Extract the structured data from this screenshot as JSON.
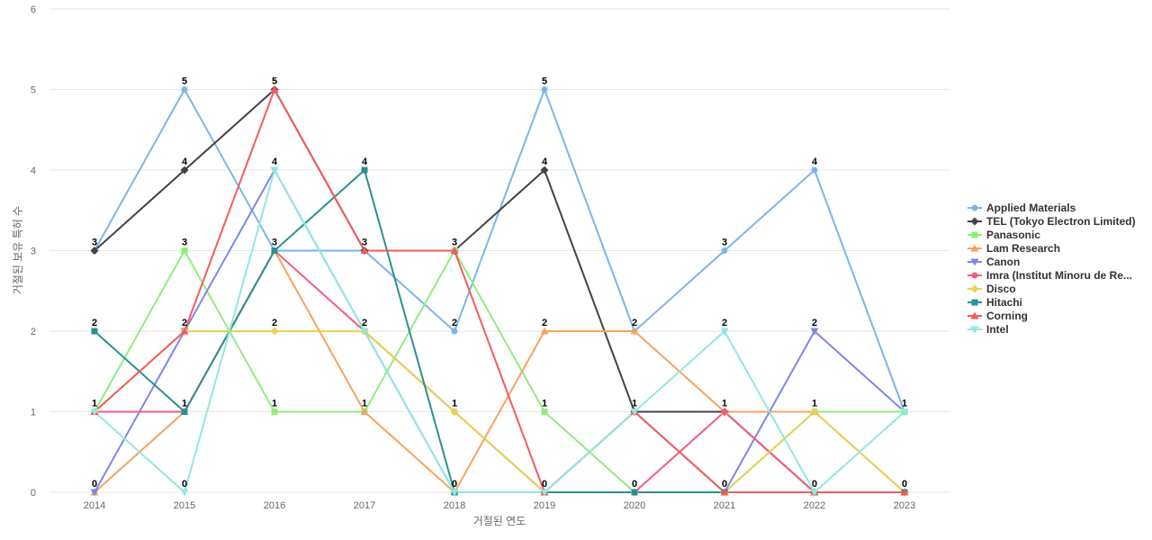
{
  "chart_data": {
    "type": "line",
    "title": "",
    "xlabel": "거절된 연도",
    "ylabel": "거절된 보유 특허 수",
    "categories": [
      "2014",
      "2015",
      "2016",
      "2017",
      "2018",
      "2019",
      "2020",
      "2021",
      "2022",
      "2023"
    ],
    "ylim": [
      0,
      6
    ],
    "yticks": [
      "0",
      "1",
      "2",
      "3",
      "4",
      "5",
      "6"
    ],
    "grid": "horizontal",
    "legend_position": "right",
    "series": [
      {
        "name": "Applied Materials",
        "color": "#7cb5ec",
        "marker": "circle",
        "values": [
          3,
          5,
          3,
          3,
          2,
          5,
          2,
          3,
          4,
          1
        ]
      },
      {
        "name": "TEL (Tokyo Electron Limited)",
        "color": "#434348",
        "marker": "diamond",
        "values": [
          3,
          4,
          5,
          3,
          3,
          4,
          1,
          1,
          0,
          0
        ]
      },
      {
        "name": "Panasonic",
        "color": "#90ed7d",
        "marker": "square",
        "values": [
          1,
          3,
          1,
          1,
          3,
          1,
          0,
          0,
          1,
          1
        ]
      },
      {
        "name": "Lam Research",
        "color": "#f7a35c",
        "marker": "triangle",
        "values": [
          0,
          1,
          3,
          1,
          0,
          2,
          2,
          1,
          1,
          0
        ]
      },
      {
        "name": "Canon",
        "color": "#8085e9",
        "marker": "triangle-down",
        "values": [
          0,
          2,
          4,
          2,
          0,
          0,
          1,
          0,
          2,
          1
        ]
      },
      {
        "name": "Imra (Institut Minoru de Re...",
        "color": "#f15c80",
        "marker": "circle",
        "values": [
          1,
          1,
          3,
          2,
          1,
          0,
          0,
          1,
          0,
          0
        ]
      },
      {
        "name": "Disco",
        "color": "#e4d354",
        "marker": "diamond",
        "values": [
          1,
          2,
          2,
          2,
          1,
          0,
          0,
          0,
          1,
          0
        ]
      },
      {
        "name": "Hitachi",
        "color": "#2b908f",
        "marker": "square",
        "values": [
          2,
          1,
          3,
          4,
          0,
          0,
          0,
          0,
          0,
          0
        ]
      },
      {
        "name": "Corning",
        "color": "#f45b5b",
        "marker": "triangle",
        "values": [
          1,
          2,
          5,
          3,
          3,
          0,
          1,
          0,
          0,
          0
        ]
      },
      {
        "name": "Intel",
        "color": "#91e8e1",
        "marker": "triangle-down",
        "values": [
          1,
          0,
          4,
          2,
          0,
          0,
          1,
          2,
          0,
          1
        ]
      }
    ],
    "data_labels": {
      "2014": [
        "3",
        "2",
        "1",
        "0"
      ],
      "2015": [
        "5",
        "4",
        "3",
        "2",
        "1",
        "0"
      ],
      "2016": [
        "5",
        "4",
        "3",
        "2",
        "1"
      ],
      "2017": [
        "4",
        "3",
        "2",
        "1"
      ],
      "2018": [
        "3",
        "2",
        "1",
        "0"
      ],
      "2019": [
        "5",
        "4",
        "2",
        "1",
        "0"
      ],
      "2020": [
        "2",
        "1",
        "0"
      ],
      "2021": [
        "3",
        "2",
        "1",
        "0"
      ],
      "2022": [
        "4",
        "2",
        "1",
        "0"
      ],
      "2023": [
        "1",
        "0"
      ]
    }
  }
}
